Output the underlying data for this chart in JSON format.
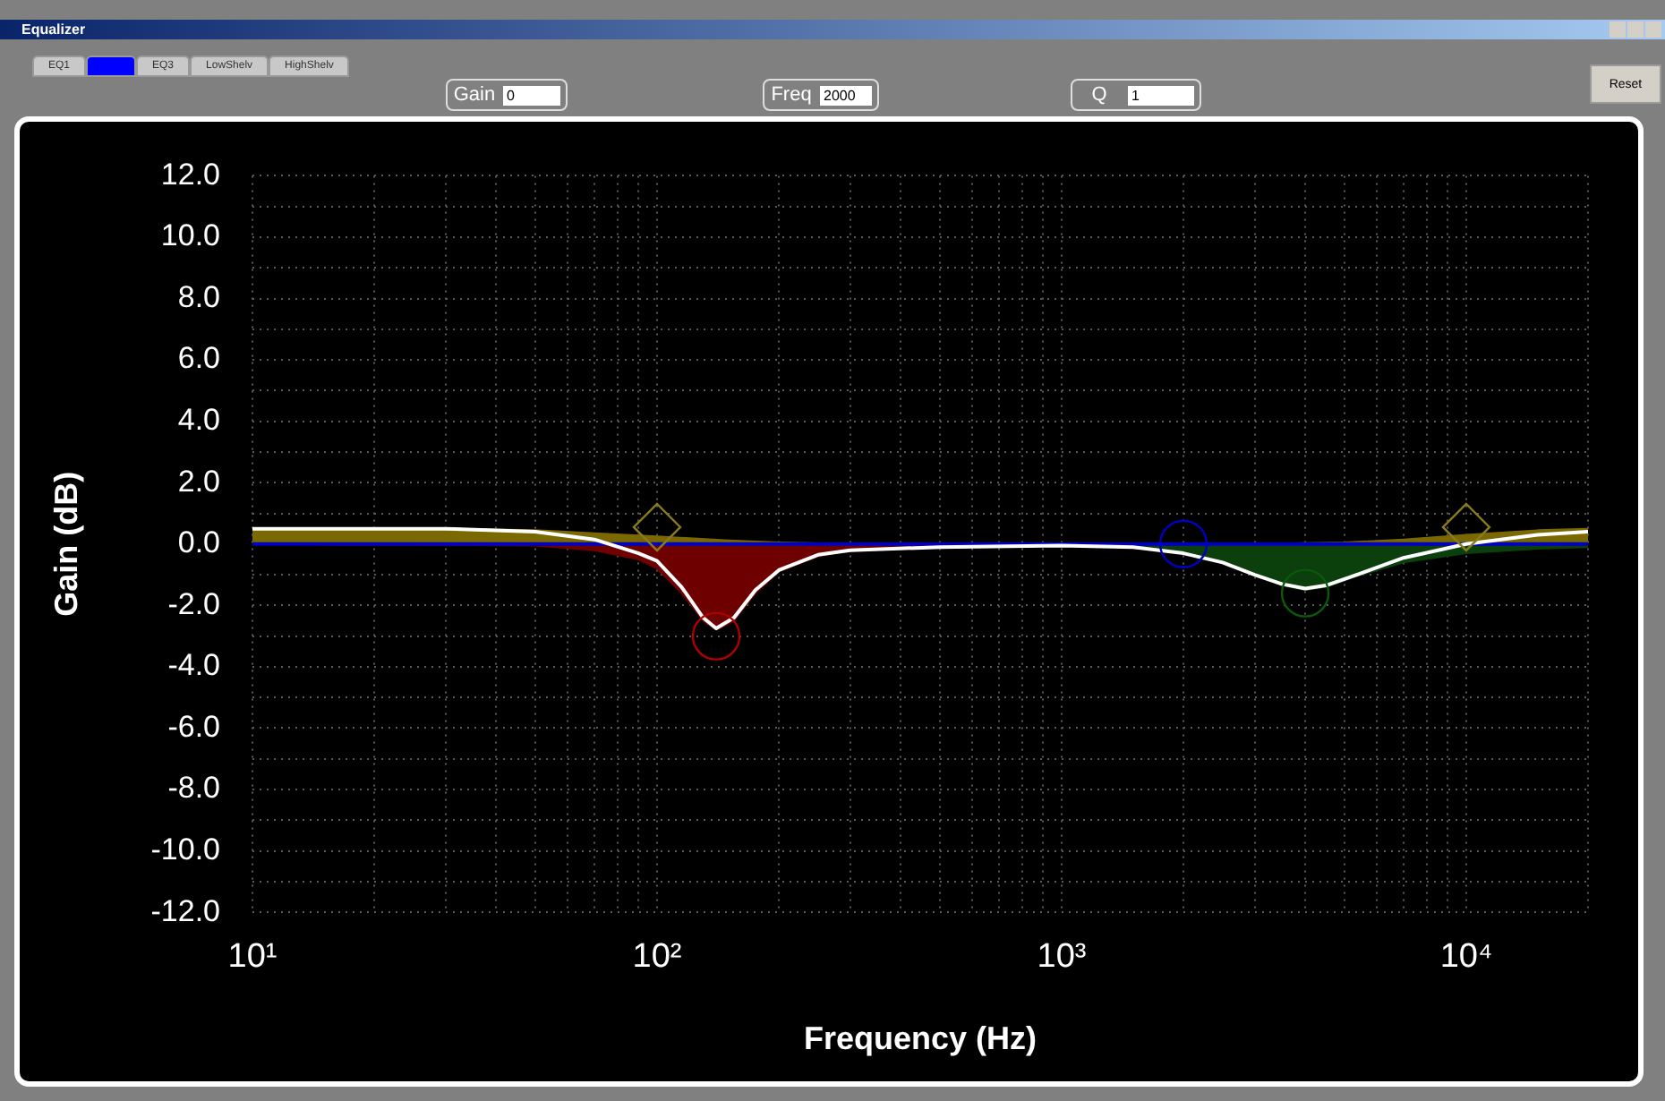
{
  "chart_data": {
    "type": "line",
    "xlabel": "Frequency (Hz)",
    "ylabel": "Gain (dB)",
    "log": "x",
    "grid": true,
    "legend": false,
    "line_style": "solid",
    "xlim": [
      10,
      20000
    ],
    "xticks": [
      {
        "value": 10,
        "label": "10¹"
      },
      {
        "value": 20,
        "label": null
      },
      {
        "value": 30,
        "label": null
      },
      {
        "value": 40,
        "label": null
      },
      {
        "value": 50,
        "label": null
      },
      {
        "value": 60,
        "label": null
      },
      {
        "value": 70,
        "label": null
      },
      {
        "value": 80,
        "label": null
      },
      {
        "value": 90,
        "label": null
      },
      {
        "value": 100,
        "label": "10²"
      },
      {
        "value": 200,
        "label": null
      },
      {
        "value": 300,
        "label": null
      },
      {
        "value": 400,
        "label": null
      },
      {
        "value": 500,
        "label": null
      },
      {
        "value": 600,
        "label": null
      },
      {
        "value": 700,
        "label": null
      },
      {
        "value": 800,
        "label": null
      },
      {
        "value": 900,
        "label": null
      },
      {
        "value": 1000,
        "label": "10³"
      },
      {
        "value": 2000,
        "label": null
      },
      {
        "value": 3000,
        "label": null
      },
      {
        "value": 4000,
        "label": null
      },
      {
        "value": 5000,
        "label": null
      },
      {
        "value": 6000,
        "label": null
      },
      {
        "value": 7000,
        "label": null
      },
      {
        "value": 8000,
        "label": null
      },
      {
        "value": 9000,
        "label": null
      },
      {
        "value": 10000,
        "label": "10⁴"
      },
      {
        "value": 20000,
        "label": null
      }
    ],
    "ylim": [
      -12,
      12
    ],
    "yticks": [
      {
        "value": -12,
        "label": "-12.0"
      },
      {
        "value": -11,
        "label": null
      },
      {
        "value": -10,
        "label": "-10.0"
      },
      {
        "value": -9,
        "label": null
      },
      {
        "value": -8,
        "label": "-8.0"
      },
      {
        "value": -7,
        "label": null
      },
      {
        "value": -6,
        "label": "-6.0"
      },
      {
        "value": -5,
        "label": null
      },
      {
        "value": -4,
        "label": "-4.0"
      },
      {
        "value": -3,
        "label": null
      },
      {
        "value": -2,
        "label": "-2.0"
      },
      {
        "value": -1,
        "label": null
      },
      {
        "value": 0,
        "label": "0.0"
      },
      {
        "value": 1,
        "label": null
      },
      {
        "value": 2,
        "label": "2.0"
      },
      {
        "value": 3,
        "label": null
      },
      {
        "value": 4,
        "label": "4.0"
      },
      {
        "value": 5,
        "label": null
      },
      {
        "value": 6,
        "label": "6.0"
      },
      {
        "value": 7,
        "label": null
      },
      {
        "value": 8,
        "label": "8.0"
      },
      {
        "value": 9,
        "label": null
      },
      {
        "value": 10,
        "label": "10.0"
      },
      {
        "value": 11,
        "label": null
      },
      {
        "value": 12,
        "label": "12.0"
      }
    ],
    "annotations": [
      "Equalizer",
      "EQ1",
      "EQ3",
      "LowShelv",
      "HighShelv",
      "Gain",
      "0",
      "Freq",
      "2000",
      "Q",
      "1",
      "Reset"
    ],
    "series": [
      {
        "type": "area",
        "color": "#6e0000",
        "x": [
          10,
          50,
          70,
          90,
          100,
          115,
          130,
          140,
          155,
          175,
          200,
          250,
          300,
          500,
          1000,
          20000
        ],
        "values": [
          0,
          -0.05,
          -0.2,
          -0.5,
          -0.8,
          -1.6,
          -2.5,
          -2.8,
          -2.5,
          -1.6,
          -0.9,
          -0.4,
          -0.2,
          -0.05,
          0,
          0
        ]
      },
      {
        "type": "area",
        "color": "#0b3f0b",
        "x": [
          1000,
          1500,
          2000,
          2500,
          3000,
          3500,
          4000,
          4500,
          5500,
          7000,
          10000,
          15000,
          20000
        ],
        "values": [
          0,
          -0.05,
          -0.25,
          -0.6,
          -1.0,
          -1.35,
          -1.5,
          -1.4,
          -1.0,
          -0.6,
          -0.3,
          -0.15,
          -0.1
        ]
      },
      {
        "type": "area",
        "color": "#7a6800",
        "x": [
          10,
          30,
          50,
          70,
          100,
          150,
          200,
          300
        ],
        "values": [
          0.5,
          0.5,
          0.45,
          0.35,
          0.25,
          0.12,
          0.05,
          0
        ]
      },
      {
        "type": "area",
        "color": "#7a6800",
        "x": [
          3000,
          5000,
          7000,
          10000,
          15000,
          20000
        ],
        "values": [
          0,
          0.05,
          0.15,
          0.3,
          0.45,
          0.5
        ]
      },
      {
        "type": "line",
        "color": "#0000c0",
        "x": [
          10,
          20000
        ],
        "values": [
          0,
          0
        ]
      },
      {
        "type": "line",
        "color": "#ffffff",
        "x": [
          10,
          30,
          50,
          70,
          90,
          100,
          115,
          130,
          140,
          155,
          175,
          200,
          250,
          300,
          500,
          1000,
          1500,
          2000,
          2500,
          3000,
          3500,
          4000,
          4500,
          5500,
          7000,
          10000,
          15000,
          20000
        ],
        "values": [
          0.5,
          0.5,
          0.4,
          0.15,
          -0.3,
          -0.55,
          -1.4,
          -2.4,
          -2.75,
          -2.4,
          -1.5,
          -0.85,
          -0.35,
          -0.2,
          -0.1,
          -0.05,
          -0.1,
          -0.3,
          -0.6,
          -1.0,
          -1.3,
          -1.45,
          -1.35,
          -0.95,
          -0.45,
          0,
          0.3,
          0.4
        ]
      },
      {
        "type": "scatter",
        "marker": "diamond",
        "color": "#8a7a20",
        "x": [
          100,
          10000
        ],
        "values": [
          0.55,
          0.55
        ]
      },
      {
        "type": "scatter",
        "marker": "circle",
        "color": "#b00000",
        "x": [
          140
        ],
        "values": [
          -3.0
        ]
      },
      {
        "type": "scatter",
        "marker": "circle",
        "color": "#0000c0",
        "x": [
          2000
        ],
        "values": [
          0
        ]
      },
      {
        "type": "scatter",
        "marker": "circle",
        "color": "#0b5a0b",
        "x": [
          4000
        ],
        "values": [
          -1.6
        ]
      }
    ]
  }
}
